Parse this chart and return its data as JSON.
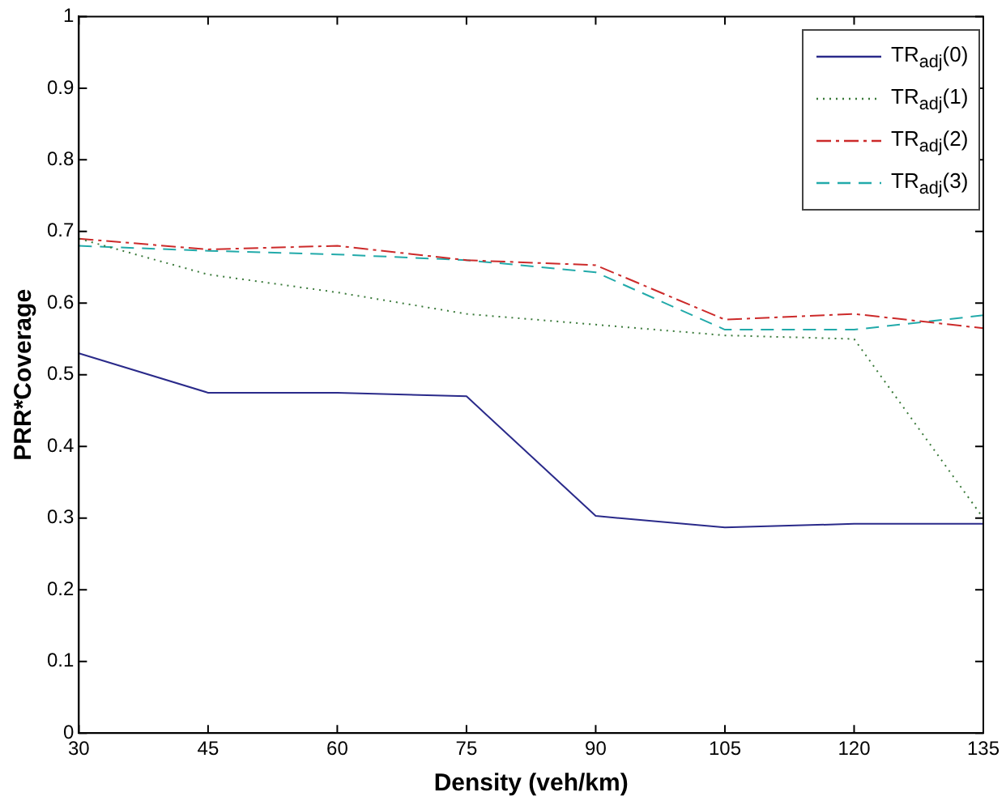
{
  "chart_data": {
    "type": "line",
    "xlabel": "Density (veh/km)",
    "ylabel": "PRR*Coverage",
    "x": [
      30,
      45,
      60,
      75,
      90,
      105,
      120,
      135
    ],
    "xlim": [
      30,
      135
    ],
    "xticks": [
      30,
      45,
      60,
      75,
      90,
      105,
      120,
      135
    ],
    "ylim": [
      0,
      1
    ],
    "yticks": [
      0,
      0.1,
      0.2,
      0.3,
      0.4,
      0.5,
      0.6,
      0.7,
      0.8,
      0.9,
      1
    ],
    "grid": false,
    "legend": "top right",
    "marker": "none",
    "series": [
      {
        "name": "TR$_{adj}$(0)",
        "color": "#2a2a8a",
        "line_style": "solid",
        "values": [
          0.53,
          0.475,
          0.475,
          0.47,
          0.303,
          0.287,
          0.292,
          0.292
        ]
      },
      {
        "name": "TR$_{adj}$(1)",
        "color": "#3a7a3a",
        "line_style": "dotted",
        "values": [
          0.69,
          0.64,
          0.615,
          0.585,
          0.57,
          0.555,
          0.55,
          0.3
        ]
      },
      {
        "name": "TR$_{adj}$(2)",
        "color": "#cc2a2a",
        "line_style": "dashdot",
        "values": [
          0.69,
          0.675,
          0.68,
          0.66,
          0.653,
          0.577,
          0.585,
          0.565
        ]
      },
      {
        "name": "TR$_{adj}$(3)",
        "color": "#22aaaa",
        "line_style": "dashed",
        "values": [
          0.68,
          0.673,
          0.668,
          0.66,
          0.643,
          0.563,
          0.563,
          0.583
        ]
      }
    ]
  }
}
